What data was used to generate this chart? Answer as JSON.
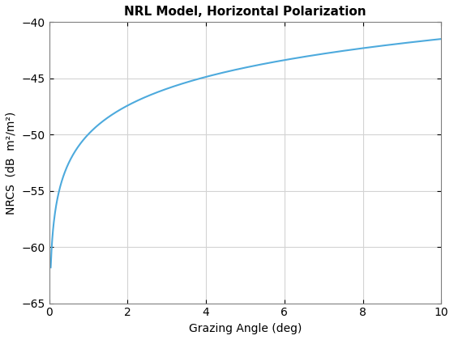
{
  "title": "NRL Model, Horizontal Polarization",
  "xlabel": "Grazing Angle (deg)",
  "ylabel": "NRCS  (dB  m²/m²)",
  "xlim": [
    0,
    10
  ],
  "ylim": [
    -65,
    -40
  ],
  "xticks": [
    0,
    2,
    4,
    6,
    8,
    10
  ],
  "yticks": [
    -65,
    -60,
    -55,
    -50,
    -45,
    -40
  ],
  "line_color": "#4DAADD",
  "line_width": 1.5,
  "background_color": "#ffffff",
  "grid_color": "#d3d3d3",
  "title_fontsize": 11,
  "label_fontsize": 10,
  "tick_fontsize": 10,
  "x_start": 0.04,
  "x_end": 10.0,
  "n_points": 1000,
  "nrl_A": -49.97,
  "nrl_B": 8.47
}
